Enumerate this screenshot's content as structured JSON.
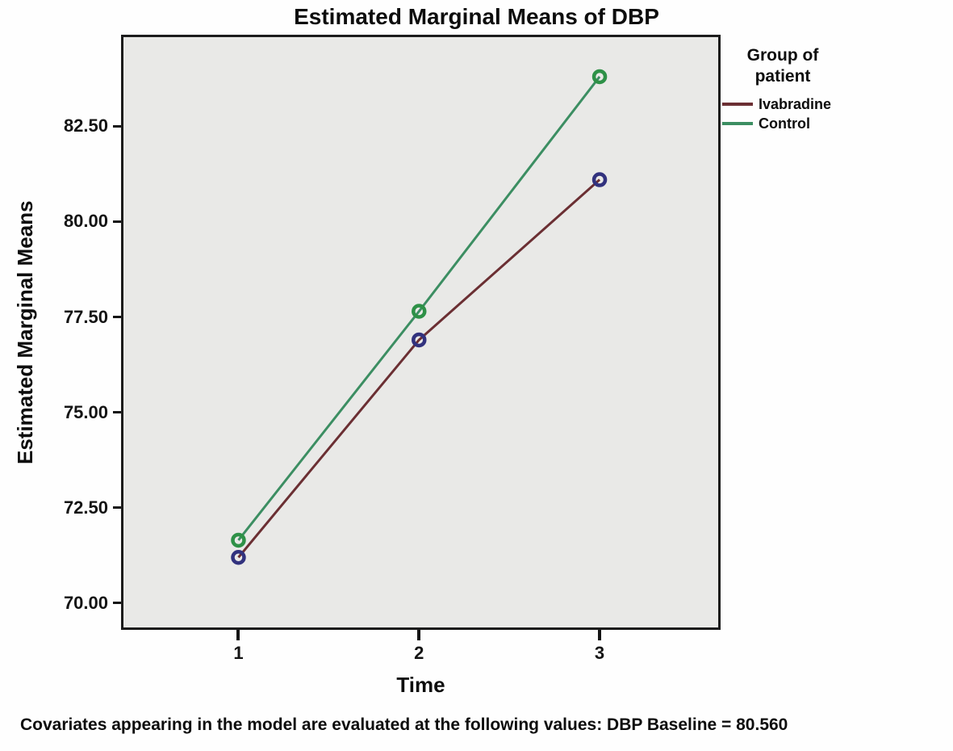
{
  "chart_data": {
    "type": "line",
    "title": "Estimated Marginal Means of DBP",
    "xlabel": "Time",
    "ylabel": "Estimated Marginal Means",
    "x": [
      1,
      2,
      3
    ],
    "series": [
      {
        "name": "Ivabradine",
        "values": [
          71.2,
          76.9,
          81.1
        ],
        "line_color": "#6b2f33",
        "marker_color": "#32327e"
      },
      {
        "name": "Control",
        "values": [
          71.65,
          77.65,
          83.8
        ],
        "line_color": "#3c8e62",
        "marker_color": "#2e9147"
      }
    ],
    "x_ticks": [
      "1",
      "2",
      "3"
    ],
    "y_ticks": [
      "70.00",
      "72.50",
      "75.00",
      "77.50",
      "80.00",
      "82.50"
    ],
    "y_tick_values": [
      70,
      72.5,
      75,
      77.5,
      80,
      82.5
    ],
    "xlim": [
      0.35,
      3.67
    ],
    "ylim": [
      69.3,
      84.9
    ],
    "grid": false,
    "legend_position": "right",
    "legend_title": "Group of patient",
    "legend_title_lines": [
      "Group of",
      "patient"
    ],
    "plot_background": "#e9e9e7",
    "border_color": "#1c1c1c",
    "footnote": "Covariates appearing in the model are evaluated at the following values: DBP Baseline = 80.560"
  }
}
